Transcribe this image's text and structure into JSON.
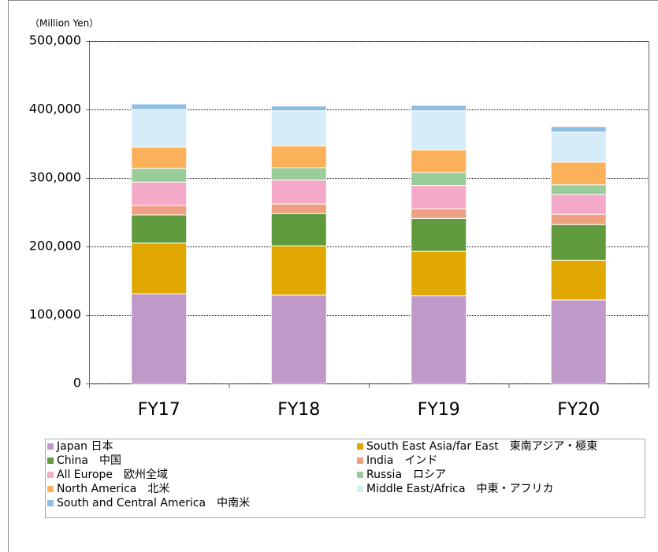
{
  "chart_data": {
    "type": "stacked_bar",
    "y_axis_label": "（Million Yen）",
    "categories": [
      "FY17",
      "FY18",
      "FY19",
      "FY20"
    ],
    "series": [
      {
        "name": "Japan 日本",
        "color": "#bf99c8",
        "values": [
          131000,
          129000,
          128000,
          122000
        ]
      },
      {
        "name": "South East Asia/far East　東南アジア・極東",
        "color": "#e0a800",
        "values": [
          74000,
          72000,
          65000,
          58000
        ]
      },
      {
        "name": "China　中国",
        "color": "#5f9a3c",
        "values": [
          41000,
          47000,
          48000,
          52000
        ]
      },
      {
        "name": "India　インド",
        "color": "#efa080",
        "values": [
          14000,
          14000,
          14000,
          15000
        ]
      },
      {
        "name": "All Europe　欧州全域",
        "color": "#f5a9c8",
        "values": [
          34000,
          35000,
          34000,
          29000
        ]
      },
      {
        "name": "Russia　ロシア",
        "color": "#99cc99",
        "values": [
          20000,
          18000,
          19000,
          14000
        ]
      },
      {
        "name": "North America　北米",
        "color": "#fbb05a",
        "values": [
          31000,
          32000,
          33000,
          33000
        ]
      },
      {
        "name": "Middle East/Africa　中東・アフリカ",
        "color": "#d6ecf8",
        "values": [
          55000,
          51000,
          57000,
          44000
        ]
      },
      {
        "name": "South and Central America　中南米",
        "color": "#8dbde0",
        "values": [
          8000,
          7000,
          8000,
          8000
        ]
      }
    ],
    "ylim": [
      0,
      500000
    ],
    "yticks": [
      0,
      {
        "value": 100000,
        "label": "100,000"
      },
      {
        "value": 200000,
        "label": "200,000"
      },
      {
        "value": 300000,
        "label": "300,000"
      },
      {
        "value": 400000,
        "label": "400,000"
      },
      {
        "value": 500000,
        "label": "500,000"
      }
    ],
    "grid": true,
    "legend": "bottom"
  }
}
